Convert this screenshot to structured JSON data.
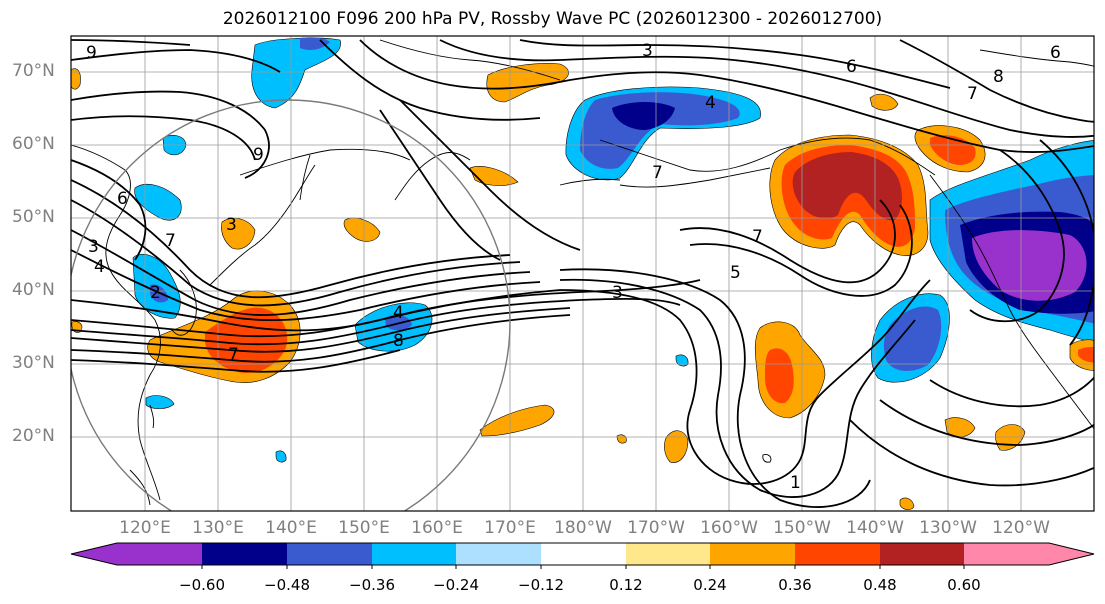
{
  "title": "2026012100 F096 200 hPa PV, Rossby Wave PC (2026012300 - 2026012700)",
  "lat_labels": [
    "70°N",
    "60°N",
    "50°N",
    "40°N",
    "30°N",
    "20°N"
  ],
  "lon_labels": [
    "120°E",
    "130°E",
    "140°E",
    "150°E",
    "160°E",
    "170°E",
    "180°W",
    "170°W",
    "160°W",
    "150°W",
    "140°W",
    "130°W",
    "120°W"
  ],
  "contour_labels": [
    "9",
    "3",
    "6",
    "8",
    "7",
    "4",
    "9",
    "6",
    "3",
    "7",
    "4",
    "2",
    "7",
    "3",
    "4",
    "8",
    "7",
    "7",
    "5",
    "3",
    "1",
    "6"
  ],
  "colorbar": {
    "tick_labels": [
      "−0.60",
      "−0.48",
      "−0.36",
      "−0.24",
      "−0.12",
      "0.12",
      "0.24",
      "0.36",
      "0.48",
      "0.60"
    ],
    "colors": [
      "#9932CC",
      "#00008B",
      "#3A5BD0",
      "#00BFFF",
      "#ADDFFF",
      "#FFFFFF",
      "#FFE88C",
      "#FFA500",
      "#FF4500",
      "#B22222",
      "#FF88AA"
    ]
  },
  "colors": {
    "neg_extreme": "#9932CC",
    "neg_strong": "#00008B",
    "neg_mid": "#3A5BD0",
    "neg_light": "#00BFFF",
    "neg_pale": "#ADDFFF",
    "pos_pale": "#FFE88C",
    "pos_light": "#FFA500",
    "pos_mid": "#FF4500",
    "pos_strong": "#B22222",
    "pos_extreme": "#FF88AA"
  }
}
